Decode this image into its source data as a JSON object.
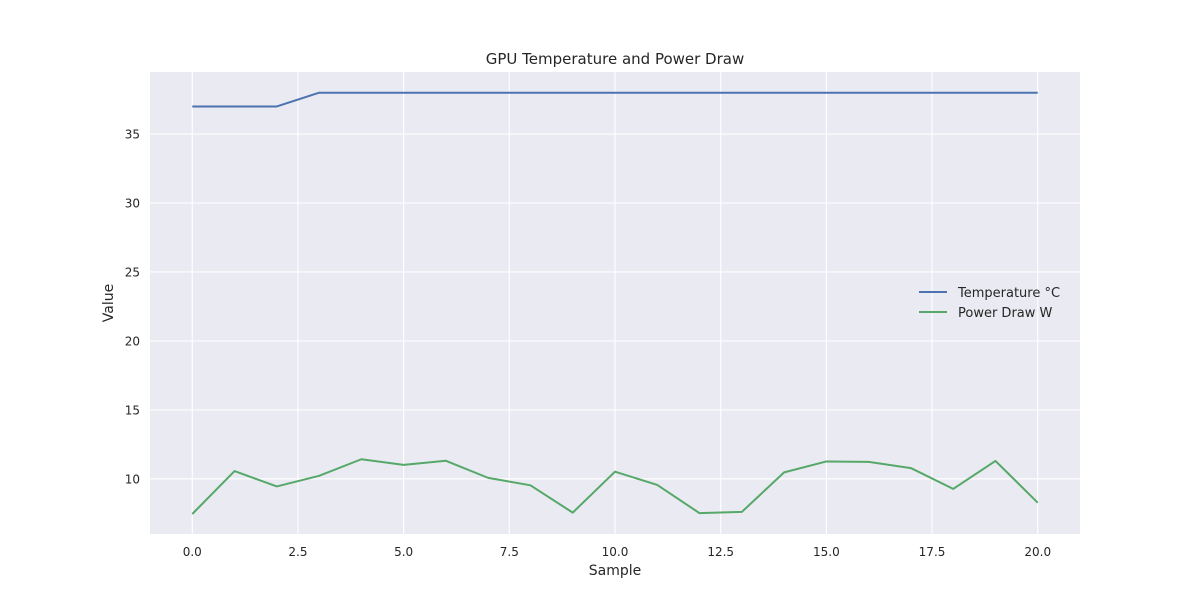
{
  "chart_data": {
    "type": "line",
    "title": "GPU Temperature and Power Draw",
    "xlabel": "Sample",
    "ylabel": "Value",
    "x": [
      0,
      1,
      2,
      3,
      4,
      5,
      6,
      7,
      8,
      9,
      10,
      11,
      12,
      13,
      14,
      15,
      16,
      17,
      18,
      19,
      20
    ],
    "xlim": [
      -1,
      21
    ],
    "ylim": [
      6,
      39.5
    ],
    "x_ticks": [
      0.0,
      2.5,
      5.0,
      7.5,
      10.0,
      12.5,
      15.0,
      17.5,
      20.0
    ],
    "x_tick_labels": [
      "0.0",
      "2.5",
      "5.0",
      "7.5",
      "10.0",
      "12.5",
      "15.0",
      "17.5",
      "20.0"
    ],
    "y_ticks": [
      10,
      15,
      20,
      25,
      30,
      35
    ],
    "y_tick_labels": [
      "10",
      "15",
      "20",
      "25",
      "30",
      "35"
    ],
    "grid": true,
    "legend_position": "center-right",
    "background_color": "#eaeaf2",
    "grid_color": "#ffffff",
    "series": [
      {
        "name": "Temperature °C",
        "color": "#4c72b0",
        "values": [
          37,
          37,
          37,
          38,
          38,
          38,
          38,
          38,
          38,
          38,
          38,
          38,
          38,
          38,
          38,
          38,
          38,
          38,
          38,
          38,
          38
        ]
      },
      {
        "name": "Power Draw W",
        "color": "#55a868",
        "values": [
          7.45,
          10.56,
          9.45,
          10.22,
          11.42,
          11.01,
          11.31,
          10.07,
          9.53,
          7.55,
          10.52,
          9.56,
          7.51,
          7.6,
          10.47,
          11.26,
          11.23,
          10.78,
          9.27,
          11.3,
          8.27
        ]
      }
    ]
  }
}
